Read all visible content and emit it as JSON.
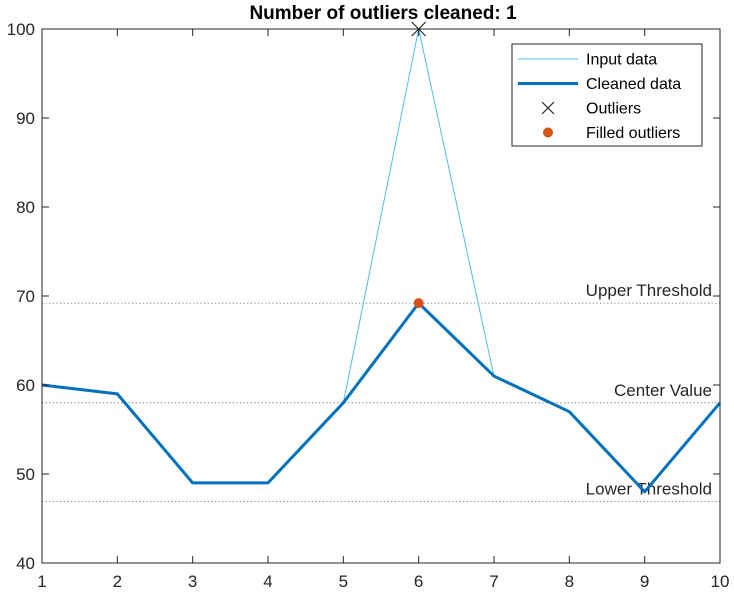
{
  "chart_data": {
    "type": "line",
    "title": "Number of outliers cleaned: 1",
    "x": [
      1,
      2,
      3,
      4,
      5,
      6,
      7,
      8,
      9,
      10
    ],
    "xlim": [
      1,
      10
    ],
    "ylim": [
      40,
      100
    ],
    "xticks": [
      1,
      2,
      3,
      4,
      5,
      6,
      7,
      8,
      9,
      10
    ],
    "yticks": [
      40,
      50,
      60,
      70,
      80,
      90,
      100
    ],
    "grid": false,
    "legend_position": "top-right",
    "series": [
      {
        "name": "Input data",
        "values": [
          60,
          59,
          49,
          49,
          58,
          100,
          61,
          57,
          48,
          58
        ],
        "color": "#4DBEEE",
        "style": "thin-line"
      },
      {
        "name": "Cleaned data",
        "values": [
          60,
          59,
          49,
          49,
          58,
          69.2,
          61,
          57,
          48,
          58
        ],
        "color": "#0072BD",
        "style": "thick-line"
      },
      {
        "name": "Outliers",
        "points": [
          {
            "x": 6,
            "y": 100
          }
        ],
        "color": "#262626",
        "style": "x-marker"
      },
      {
        "name": "Filled outliers",
        "points": [
          {
            "x": 6,
            "y": 69.2
          }
        ],
        "color": "#D95319",
        "style": "dot-marker"
      }
    ],
    "reference_lines": [
      {
        "label": "Upper Threshold",
        "y": 69.2
      },
      {
        "label": "Center Value",
        "y": 58
      },
      {
        "label": "Lower Threshold",
        "y": 46.9
      }
    ]
  }
}
